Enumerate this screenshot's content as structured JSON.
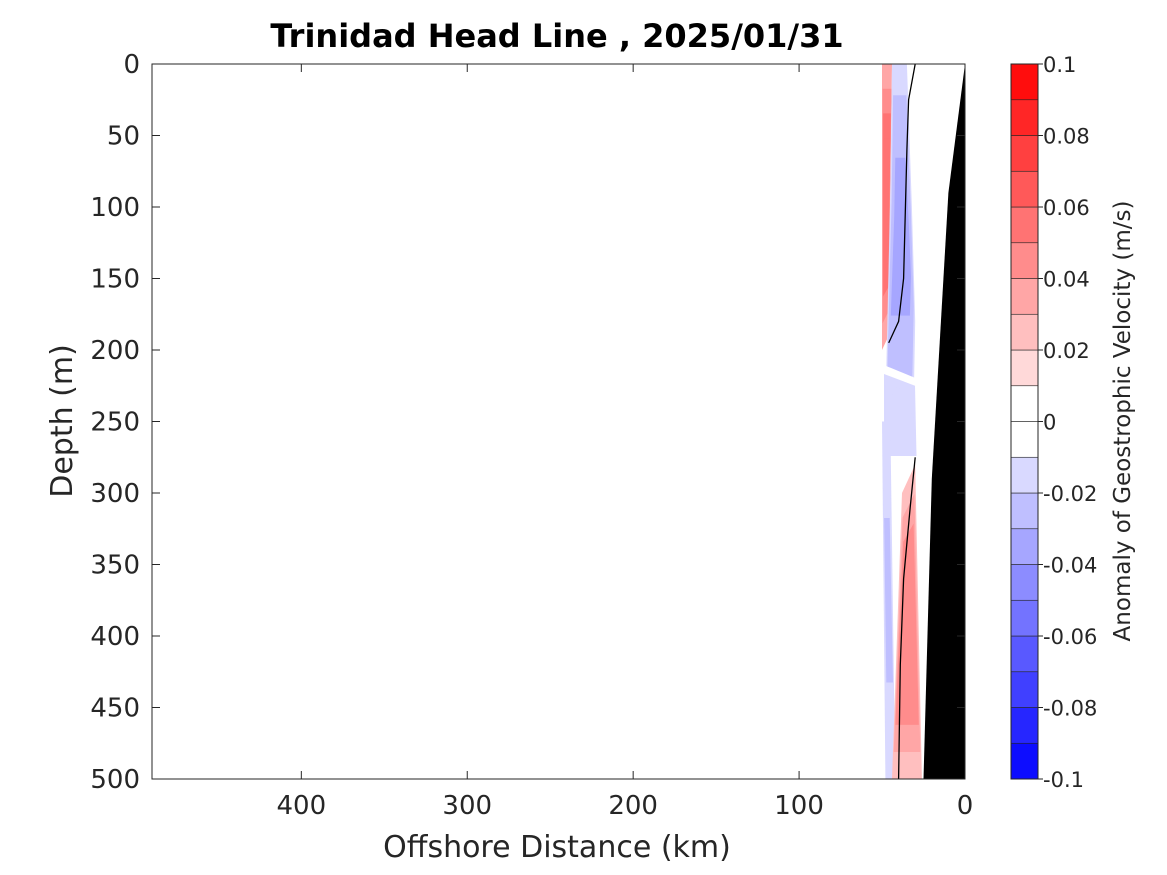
{
  "chart_data": {
    "type": "contour",
    "title": "Trinidad Head Line , 2025/01/31",
    "xlabel": "Offshore Distance (km)",
    "ylabel": "Depth (m)",
    "xlim": [
      490,
      0
    ],
    "ylim": [
      0,
      500
    ],
    "x_reversed": true,
    "y_reversed": true,
    "xticks": [
      400,
      300,
      200,
      100,
      0
    ],
    "yticks": [
      0,
      50,
      100,
      150,
      200,
      250,
      300,
      350,
      400,
      450,
      500
    ],
    "colorbar": {
      "label": "Anomaly of Geostrophic Velocity (m/s)",
      "clim": [
        -0.1,
        0.1
      ],
      "levels": [
        -0.1,
        -0.09,
        -0.08,
        -0.07,
        -0.06,
        -0.05,
        -0.04,
        -0.03,
        -0.02,
        -0.01,
        0,
        0.01,
        0.02,
        0.03,
        0.04,
        0.05,
        0.06,
        0.07,
        0.08,
        0.09,
        0.1
      ],
      "ticks": [
        0.1,
        0.08,
        0.06,
        0.04,
        0.02,
        0,
        -0.02,
        -0.04,
        -0.06,
        -0.08,
        -0.1
      ],
      "ticklabels": [
        "0.1",
        "0.08",
        "0.06",
        "0.04",
        "0.02",
        "0",
        "-0.02",
        "-0.04",
        "-0.06",
        "-0.08",
        "-0.1"
      ],
      "colormap": "blue-white-red",
      "colors": {
        "negative": "#0000ff",
        "zero": "#ffffff",
        "positive": "#ff0000"
      }
    },
    "data_region_x": [
      50,
      30
    ],
    "bathymetry": {
      "color": "#000000",
      "outline": [
        [
          0,
          0
        ],
        [
          10,
          90
        ],
        [
          20,
          290
        ],
        [
          25,
          500
        ],
        [
          0,
          500
        ]
      ]
    },
    "fields": [
      {
        "name": "nearshore surface positive",
        "value": 0.06,
        "outline": [
          [
            50,
            0
          ],
          [
            44,
            0
          ],
          [
            45,
            90
          ],
          [
            46,
            190
          ],
          [
            50,
            200
          ]
        ]
      },
      {
        "name": "surface negative band",
        "value": -0.03,
        "outline": [
          [
            44,
            0
          ],
          [
            35,
            0
          ],
          [
            32,
            100
          ],
          [
            30,
            180
          ],
          [
            31,
            240
          ],
          [
            48,
            240
          ],
          [
            45,
            90
          ]
        ]
      },
      {
        "name": "mid-depth weak negative",
        "value": -0.015,
        "outline": [
          [
            50,
            210
          ],
          [
            29,
            220
          ],
          [
            28,
            280
          ],
          [
            50,
            280
          ]
        ]
      },
      {
        "name": "deep negative band",
        "value": -0.02,
        "outline": [
          [
            50,
            250
          ],
          [
            45,
            250
          ],
          [
            42,
            500
          ],
          [
            48,
            500
          ]
        ]
      },
      {
        "name": "deep positive wedge",
        "value": 0.05,
        "outline": [
          [
            38,
            300
          ],
          [
            30,
            280
          ],
          [
            26,
            500
          ],
          [
            44,
            500
          ]
        ]
      }
    ],
    "zero_contours": [
      {
        "points": [
          [
            30,
            0
          ],
          [
            34,
            25
          ],
          [
            35,
            60
          ],
          [
            37,
            150
          ],
          [
            40,
            180
          ],
          [
            46,
            195
          ]
        ]
      },
      {
        "points": [
          [
            30,
            275
          ],
          [
            33,
            310
          ],
          [
            37,
            360
          ],
          [
            39,
            420
          ],
          [
            40,
            500
          ]
        ]
      }
    ]
  }
}
